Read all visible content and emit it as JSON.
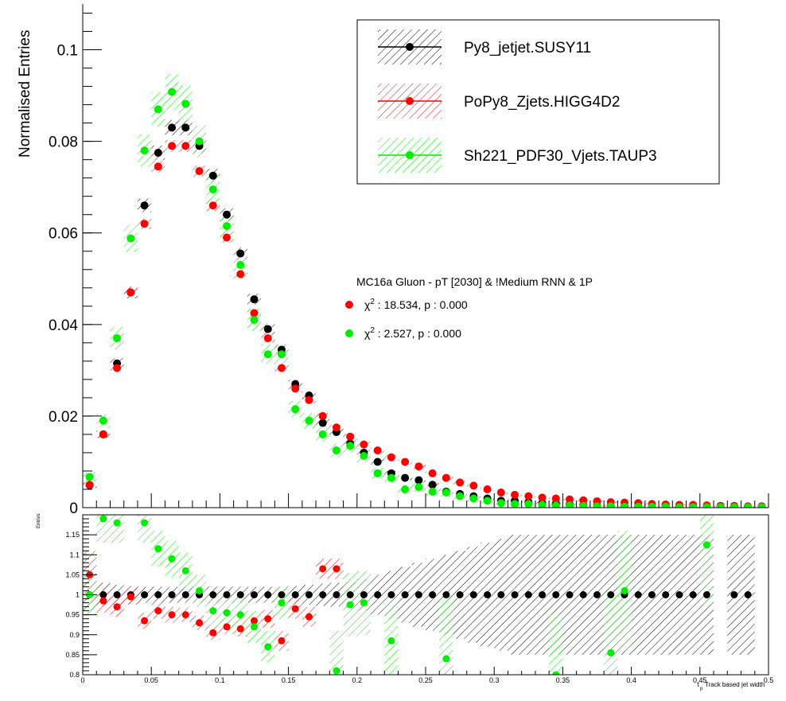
{
  "chart_data": [
    {
      "type": "scatter",
      "panel": "main",
      "ylabel": "Normalised Entries",
      "xlim": [
        0,
        0.5
      ],
      "ylim": [
        0,
        0.11
      ],
      "yticks": [
        {
          "value": 0,
          "label": "0"
        },
        {
          "value": 0.02,
          "label": "0.02"
        },
        {
          "value": 0.04,
          "label": "0.04"
        },
        {
          "value": 0.06,
          "label": "0.06"
        },
        {
          "value": 0.08,
          "label": "0.08"
        },
        {
          "value": 0.1,
          "label": "0.1"
        }
      ],
      "x": [
        0.005,
        0.015,
        0.025,
        0.035,
        0.045,
        0.055,
        0.065,
        0.075,
        0.085,
        0.095,
        0.105,
        0.115,
        0.125,
        0.135,
        0.145,
        0.155,
        0.165,
        0.175,
        0.185,
        0.195,
        0.205,
        0.215,
        0.225,
        0.235,
        0.245,
        0.255,
        0.265,
        0.275,
        0.285,
        0.295,
        0.305,
        0.315,
        0.325,
        0.335,
        0.345,
        0.355,
        0.365,
        0.375,
        0.385,
        0.395,
        0.405,
        0.415,
        0.425,
        0.435,
        0.445,
        0.455,
        0.465,
        0.475,
        0.485,
        0.495
      ],
      "series": [
        {
          "name": "Py8_jetjet.SUSY11",
          "color": "#000000",
          "values": [
            0.0049,
            0.016,
            0.0315,
            0.047,
            0.066,
            0.0775,
            0.083,
            0.083,
            0.079,
            0.0725,
            0.064,
            0.0555,
            0.0455,
            0.039,
            0.0345,
            0.027,
            0.0245,
            0.0185,
            0.0165,
            0.014,
            0.012,
            0.01,
            0.0075,
            0.0065,
            0.006,
            0.005,
            0.0035,
            0.003,
            0.0025,
            0.002,
            0.0015,
            0.0015,
            0.0012,
            0.001,
            0.0009,
            0.0007,
            0.0006,
            0.0005,
            0.0004,
            0.0003,
            0.0003,
            0.0002,
            0.0002,
            0.0002,
            0.0001,
            0.0001,
            0.0001,
            0.0001,
            0.0001,
            0.0001
          ],
          "errors": [
            0.0006,
            0.0008,
            0.0011,
            0.0013,
            0.0015,
            0.0016,
            0.0017,
            0.0017,
            0.0016,
            0.0015,
            0.0014,
            0.0013,
            0.0012,
            0.0011,
            0.001,
            0.0009,
            0.0009,
            0.0008,
            0.0007,
            0.0007,
            0.0006,
            0.0006,
            0.0005,
            0.0005,
            0.0005,
            0.0004,
            0.0004,
            0.0003,
            0.0003,
            0.0003,
            0.0003,
            0.0003,
            0.0002,
            0.0002,
            0.0002,
            0.0002,
            0.0002,
            0.0002,
            0.0002,
            0.0002,
            0.0002,
            0.0001,
            0.0001,
            0.0001,
            0.0001,
            0.0001,
            0.0001,
            0.0001,
            0.0001,
            0.0001
          ]
        },
        {
          "name": "PoPy8_Zjets.HIGG4D2",
          "color": "#ff0000",
          "values": [
            0.005,
            0.016,
            0.0305,
            0.047,
            0.062,
            0.0745,
            0.079,
            0.079,
            0.0735,
            0.066,
            0.059,
            0.051,
            0.0425,
            0.037,
            0.0305,
            0.026,
            0.0235,
            0.02,
            0.0175,
            0.0155,
            0.0138,
            0.0125,
            0.011,
            0.01,
            0.009,
            0.0075,
            0.0065,
            0.0055,
            0.0048,
            0.004,
            0.0033,
            0.0028,
            0.0025,
            0.0022,
            0.002,
            0.0018,
            0.0016,
            0.0014,
            0.0012,
            0.0011,
            0.001,
            0.0008,
            0.0007,
            0.0006,
            0.0006,
            0.0005,
            0.0004,
            0.0004,
            0.0003,
            0.0003
          ],
          "errors": [
            0.0005,
            0.0007,
            0.0009,
            0.0011,
            0.0012,
            0.0013,
            0.0013,
            0.0013,
            0.0012,
            0.0012,
            0.0011,
            0.001,
            0.0009,
            0.0009,
            0.0008,
            0.0008,
            0.0007,
            0.0007,
            0.0006,
            0.0006,
            0.0006,
            0.0005,
            0.0005,
            0.0005,
            0.0005,
            0.0004,
            0.0004,
            0.0004,
            0.0003,
            0.0003,
            0.0003,
            0.0003,
            0.0003,
            0.0002,
            0.0002,
            0.0002,
            0.0002,
            0.0002,
            0.0002,
            0.0002,
            0.0002,
            0.0002,
            0.0001,
            0.0001,
            0.0001,
            0.0001,
            0.0001,
            0.0001,
            0.0001,
            0.0001
          ]
        },
        {
          "name": "Sh221_PDF30_Vjets.TAUP3",
          "color": "#00ee00",
          "values": [
            0.0067,
            0.019,
            0.037,
            0.0588,
            0.078,
            0.087,
            0.0908,
            0.0882,
            0.08,
            0.0695,
            0.0615,
            0.053,
            0.041,
            0.0335,
            0.0335,
            0.0215,
            0.019,
            0.016,
            0.0125,
            0.0135,
            0.0113,
            0.0075,
            0.0065,
            0.004,
            0.0045,
            0.0035,
            0.0033,
            0.0025,
            0.002,
            0.0015,
            0.001,
            0.0008,
            0.0008,
            0.0006,
            0.0005,
            0.0005,
            0.0004,
            0.0003,
            0.0003,
            0.0002,
            0.0002,
            0.0002,
            0.0002,
            0.0001,
            0.0001,
            0.0001,
            0.0001,
            0.0001,
            0.0001,
            0.0001
          ],
          "errors": [
            0.001,
            0.0015,
            0.0025,
            0.003,
            0.0035,
            0.0038,
            0.004,
            0.004,
            0.0035,
            0.0032,
            0.003,
            0.0028,
            0.0025,
            0.0022,
            0.0022,
            0.0018,
            0.0017,
            0.0016,
            0.0015,
            0.0015,
            0.0014,
            0.0012,
            0.0012,
            0.001,
            0.001,
            0.0009,
            0.0009,
            0.0008,
            0.0007,
            0.0006,
            0.0005,
            0.0005,
            0.0005,
            0.0004,
            0.0004,
            0.0004,
            0.0003,
            0.0003,
            0.0003,
            0.0002,
            0.0002,
            0.0002,
            0.0002,
            0.0001,
            0.0001,
            0.0001,
            0.0001,
            0.0001,
            0.0001,
            0.0001
          ]
        }
      ],
      "annotation": {
        "title": "MC16a Gluon - pT [2030] & !Medium RNN & 1P",
        "stats": [
          {
            "symbol": "χ",
            "sup": "2",
            "text": " : 18.534, p : 0.000",
            "color": "#ff0000"
          },
          {
            "symbol": "χ",
            "sup": "2",
            "text": " : 2.527, p : 0.000",
            "color": "#00ee00"
          }
        ]
      },
      "legend_position": "top-right"
    },
    {
      "type": "scatter",
      "panel": "ratio",
      "ylabel": "Entries",
      "xlabel": "Track based jet width",
      "xlabel_symbol": "τ",
      "xlabel_sub": "p",
      "xlim": [
        0,
        0.5
      ],
      "ylim": [
        0.8,
        1.2
      ],
      "xticks": [
        {
          "value": 0,
          "label": "0"
        },
        {
          "value": 0.05,
          "label": "0.05"
        },
        {
          "value": 0.1,
          "label": "0.1"
        },
        {
          "value": 0.15,
          "label": "0.15"
        },
        {
          "value": 0.2,
          "label": "0.2"
        },
        {
          "value": 0.25,
          "label": "0.25"
        },
        {
          "value": 0.3,
          "label": "0.3"
        },
        {
          "value": 0.35,
          "label": "0.35"
        },
        {
          "value": 0.4,
          "label": "0.4"
        },
        {
          "value": 0.45,
          "label": "0.45"
        },
        {
          "value": 0.5,
          "label": "0.5"
        }
      ],
      "yticks": [
        {
          "value": 0.8,
          "label": "0.8"
        },
        {
          "value": 0.85,
          "label": "0.85"
        },
        {
          "value": 0.9,
          "label": "0.9"
        },
        {
          "value": 0.95,
          "label": "0.95"
        },
        {
          "value": 1,
          "label": "1"
        },
        {
          "value": 1.05,
          "label": "1.05"
        },
        {
          "value": 1.1,
          "label": "1.1"
        },
        {
          "value": 1.15,
          "label": "1.15"
        }
      ],
      "x": [
        0.005,
        0.015,
        0.025,
        0.035,
        0.045,
        0.055,
        0.065,
        0.075,
        0.085,
        0.095,
        0.105,
        0.115,
        0.125,
        0.135,
        0.145,
        0.155,
        0.165,
        0.175,
        0.185,
        0.195,
        0.205,
        0.215,
        0.225,
        0.235,
        0.245,
        0.255,
        0.265,
        0.275,
        0.285,
        0.295,
        0.305,
        0.315,
        0.325,
        0.335,
        0.345,
        0.355,
        0.365,
        0.375,
        0.385,
        0.395,
        0.405,
        0.415,
        0.425,
        0.435,
        0.445,
        0.455,
        0.465,
        0.475,
        0.485,
        0.495
      ],
      "series": [
        {
          "name": "Py8_jetjet.SUSY11",
          "color": "#000000",
          "values": [
            1,
            1,
            1,
            1,
            1,
            1,
            1,
            1,
            1,
            1,
            1,
            1,
            1,
            1,
            1,
            1,
            1,
            1,
            1,
            1,
            1,
            1,
            1,
            1,
            1,
            1,
            1,
            1,
            1,
            1,
            1,
            1,
            1,
            1,
            1,
            1,
            1,
            1,
            1,
            1,
            1,
            1,
            1,
            1,
            1,
            1,
            null,
            1,
            1,
            null
          ],
          "errors": [
            0.04,
            0.03,
            0.025,
            0.022,
            0.02,
            0.02,
            0.02,
            0.02,
            0.02,
            0.02,
            0.02,
            0.02,
            0.02,
            0.02,
            0.02,
            0.022,
            0.025,
            0.028,
            0.03,
            0.032,
            0.04,
            0.05,
            0.06,
            0.07,
            0.08,
            0.09,
            0.1,
            0.11,
            0.12,
            0.13,
            0.14,
            0.15,
            0.15,
            0.15,
            0.15,
            0.15,
            0.15,
            0.15,
            0.15,
            0.15,
            0.15,
            0.15,
            0.15,
            0.15,
            0.15,
            0.15,
            0,
            0.15,
            0.15,
            0
          ]
        },
        {
          "name": "PoPy8_Zjets.HIGG4D2",
          "color": "#ff0000",
          "values": [
            1.05,
            0.985,
            0.97,
            0.995,
            0.935,
            0.96,
            0.95,
            0.95,
            0.93,
            0.905,
            0.92,
            0.915,
            0.935,
            0.94,
            0.885,
            0.965,
            0.945,
            1.065,
            1.065,
            null,
            null,
            null,
            null,
            null,
            null,
            null,
            null,
            null,
            null,
            null,
            null,
            null,
            null,
            null,
            null,
            null,
            null,
            null,
            null,
            null,
            null,
            null,
            null,
            null,
            null,
            null,
            null,
            null,
            null,
            null
          ],
          "errors": [
            0.06,
            0.03,
            0.025,
            0.02,
            0.02,
            0.02,
            0.02,
            0.018,
            0.018,
            0.018,
            0.018,
            0.02,
            0.02,
            0.022,
            0.025,
            0.025,
            0.025,
            0.025,
            0.025,
            0,
            0,
            0,
            0,
            0,
            0,
            0,
            0,
            0,
            0,
            0,
            0,
            0,
            0,
            0,
            0,
            0,
            0,
            0,
            0,
            0,
            0,
            0,
            0,
            0,
            0,
            0,
            0,
            0,
            0,
            0
          ]
        },
        {
          "name": "Sh221_PDF30_Vjets.TAUP3",
          "color": "#00ee00",
          "values": [
            1.0,
            1.19,
            1.18,
            null,
            1.18,
            1.115,
            1.09,
            1.06,
            1.01,
            0.96,
            0.955,
            0.95,
            0.92,
            0.87,
            0.98,
            null,
            null,
            null,
            0.81,
            0.975,
            0.98,
            null,
            0.885,
            null,
            null,
            null,
            0.84,
            null,
            null,
            null,
            null,
            null,
            null,
            null,
            0.8,
            null,
            null,
            null,
            0.855,
            1.01,
            null,
            null,
            null,
            null,
            null,
            1.125,
            null,
            null,
            null,
            null
          ],
          "errors": [
            0.05,
            0.06,
            0.05,
            0,
            0.05,
            0.045,
            0.045,
            0.045,
            0.04,
            0.04,
            0.04,
            0.04,
            0.04,
            0.04,
            0.04,
            0,
            0,
            0,
            0.1,
            0.08,
            0.08,
            0,
            0.1,
            0,
            0,
            0,
            0.15,
            0,
            0,
            0,
            0,
            0,
            0,
            0,
            0.15,
            0,
            0,
            0,
            0.15,
            0.15,
            0,
            0,
            0,
            0,
            0,
            0.15,
            0,
            0,
            0,
            0
          ]
        }
      ]
    }
  ]
}
